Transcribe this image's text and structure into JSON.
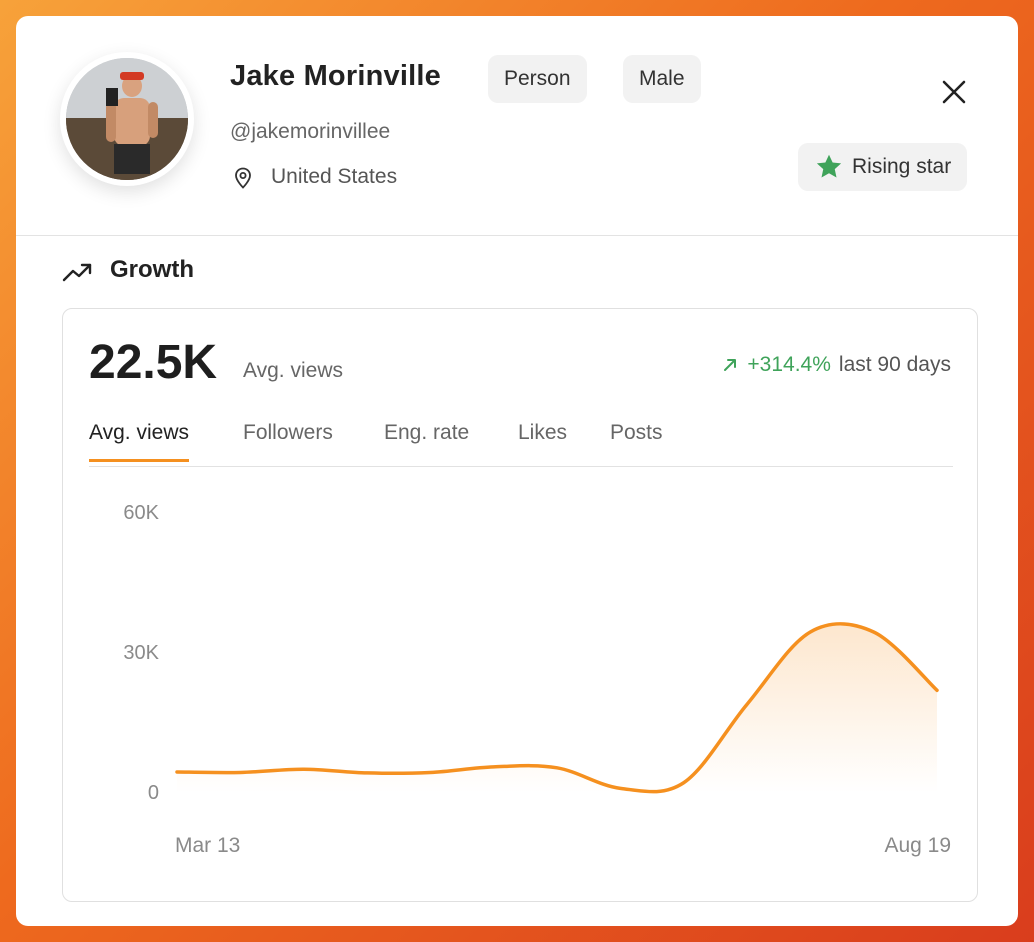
{
  "profile": {
    "name": "Jake Morinville",
    "tags": [
      "Person",
      "Male"
    ],
    "handle": "@jakemorinvillee",
    "location": "United States",
    "badge": "Rising star"
  },
  "section": {
    "title": "Growth"
  },
  "summary": {
    "value": "22.5K",
    "label": "Avg. views",
    "change": "+314.4%",
    "period": "last 90 days"
  },
  "tabs": [
    "Avg. views",
    "Followers",
    "Eng. rate",
    "Likes",
    "Posts"
  ],
  "colors": {
    "accent": "#f5901f",
    "positive": "#3fa35a",
    "star": "#3fa35a"
  },
  "chart_data": {
    "type": "area",
    "title": "",
    "xlabel": "",
    "ylabel": "",
    "y_ticks": [
      "60K",
      "30K",
      "0"
    ],
    "x_ticks": [
      "Mar 13",
      "Aug 19"
    ],
    "ylim": [
      0,
      60000
    ],
    "grid": false,
    "series": [
      {
        "values": [
          4500,
          4400,
          5100,
          4300,
          4400,
          5600,
          5400,
          1000,
          2200,
          19000,
          34500,
          34500,
          22000
        ]
      }
    ]
  }
}
